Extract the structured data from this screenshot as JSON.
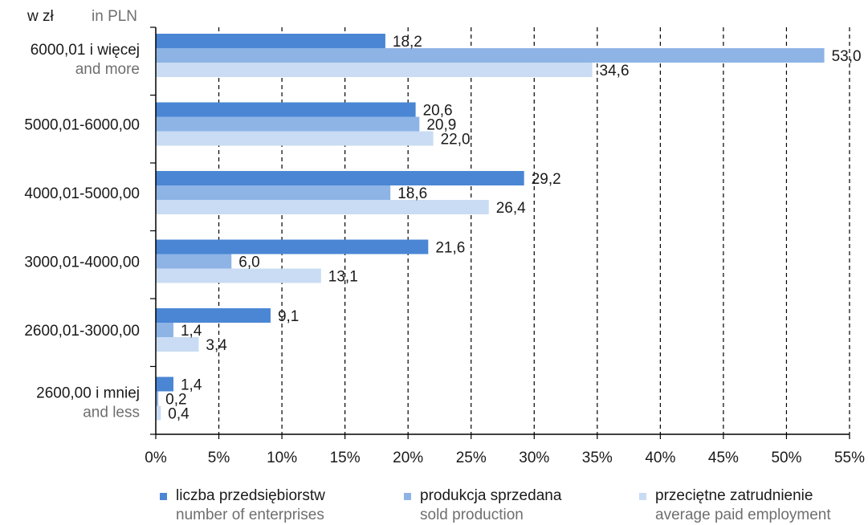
{
  "unit_label": {
    "pl": "w zł",
    "en": "in PLN"
  },
  "chart_data": {
    "type": "bar",
    "orientation": "horizontal",
    "categories": [
      {
        "pl": "6000,01 i więcej",
        "en": "and more"
      },
      {
        "pl": "5000,01-6000,00",
        "en": ""
      },
      {
        "pl": "4000,01-5000,00",
        "en": ""
      },
      {
        "pl": "3000,01-4000,00",
        "en": ""
      },
      {
        "pl": "2600,01-3000,00",
        "en": ""
      },
      {
        "pl": "2600,00 i mniej",
        "en": "and less"
      }
    ],
    "series": [
      {
        "name_pl": "liczba przedsiębiorstw",
        "name_en": "number of enterprises",
        "color": "#4a86d4",
        "values": [
          18.2,
          20.6,
          29.2,
          21.6,
          9.1,
          1.4
        ],
        "labels": [
          "18,2",
          "20,6",
          "29,2",
          "21,6",
          "9,1",
          "1,4"
        ]
      },
      {
        "name_pl": "produkcja sprzedana",
        "name_en": "sold production",
        "color": "#8eb4e6",
        "values": [
          53.0,
          20.9,
          18.6,
          6.0,
          1.4,
          0.2
        ],
        "labels": [
          "53,0",
          "20,9",
          "18,6",
          "6,0",
          "1,4",
          "0,2"
        ]
      },
      {
        "name_pl": "przeciętne zatrudnienie",
        "name_en": "average paid employment",
        "color": "#c9dcf3",
        "values": [
          34.6,
          22.0,
          26.4,
          13.1,
          3.4,
          0.4
        ],
        "labels": [
          "34,6",
          "22,0",
          "26,4",
          "13,1",
          "3,4",
          "0,4"
        ]
      }
    ],
    "xlim": [
      0,
      55
    ],
    "xticks": [
      0,
      5,
      10,
      15,
      20,
      25,
      30,
      35,
      40,
      45,
      50,
      55
    ],
    "xtick_labels": [
      "0%",
      "5%",
      "10%",
      "15%",
      "20%",
      "25%",
      "30%",
      "35%",
      "40%",
      "45%",
      "50%",
      "55%"
    ],
    "grid": "vertical dashed",
    "legend_position": "bottom"
  }
}
